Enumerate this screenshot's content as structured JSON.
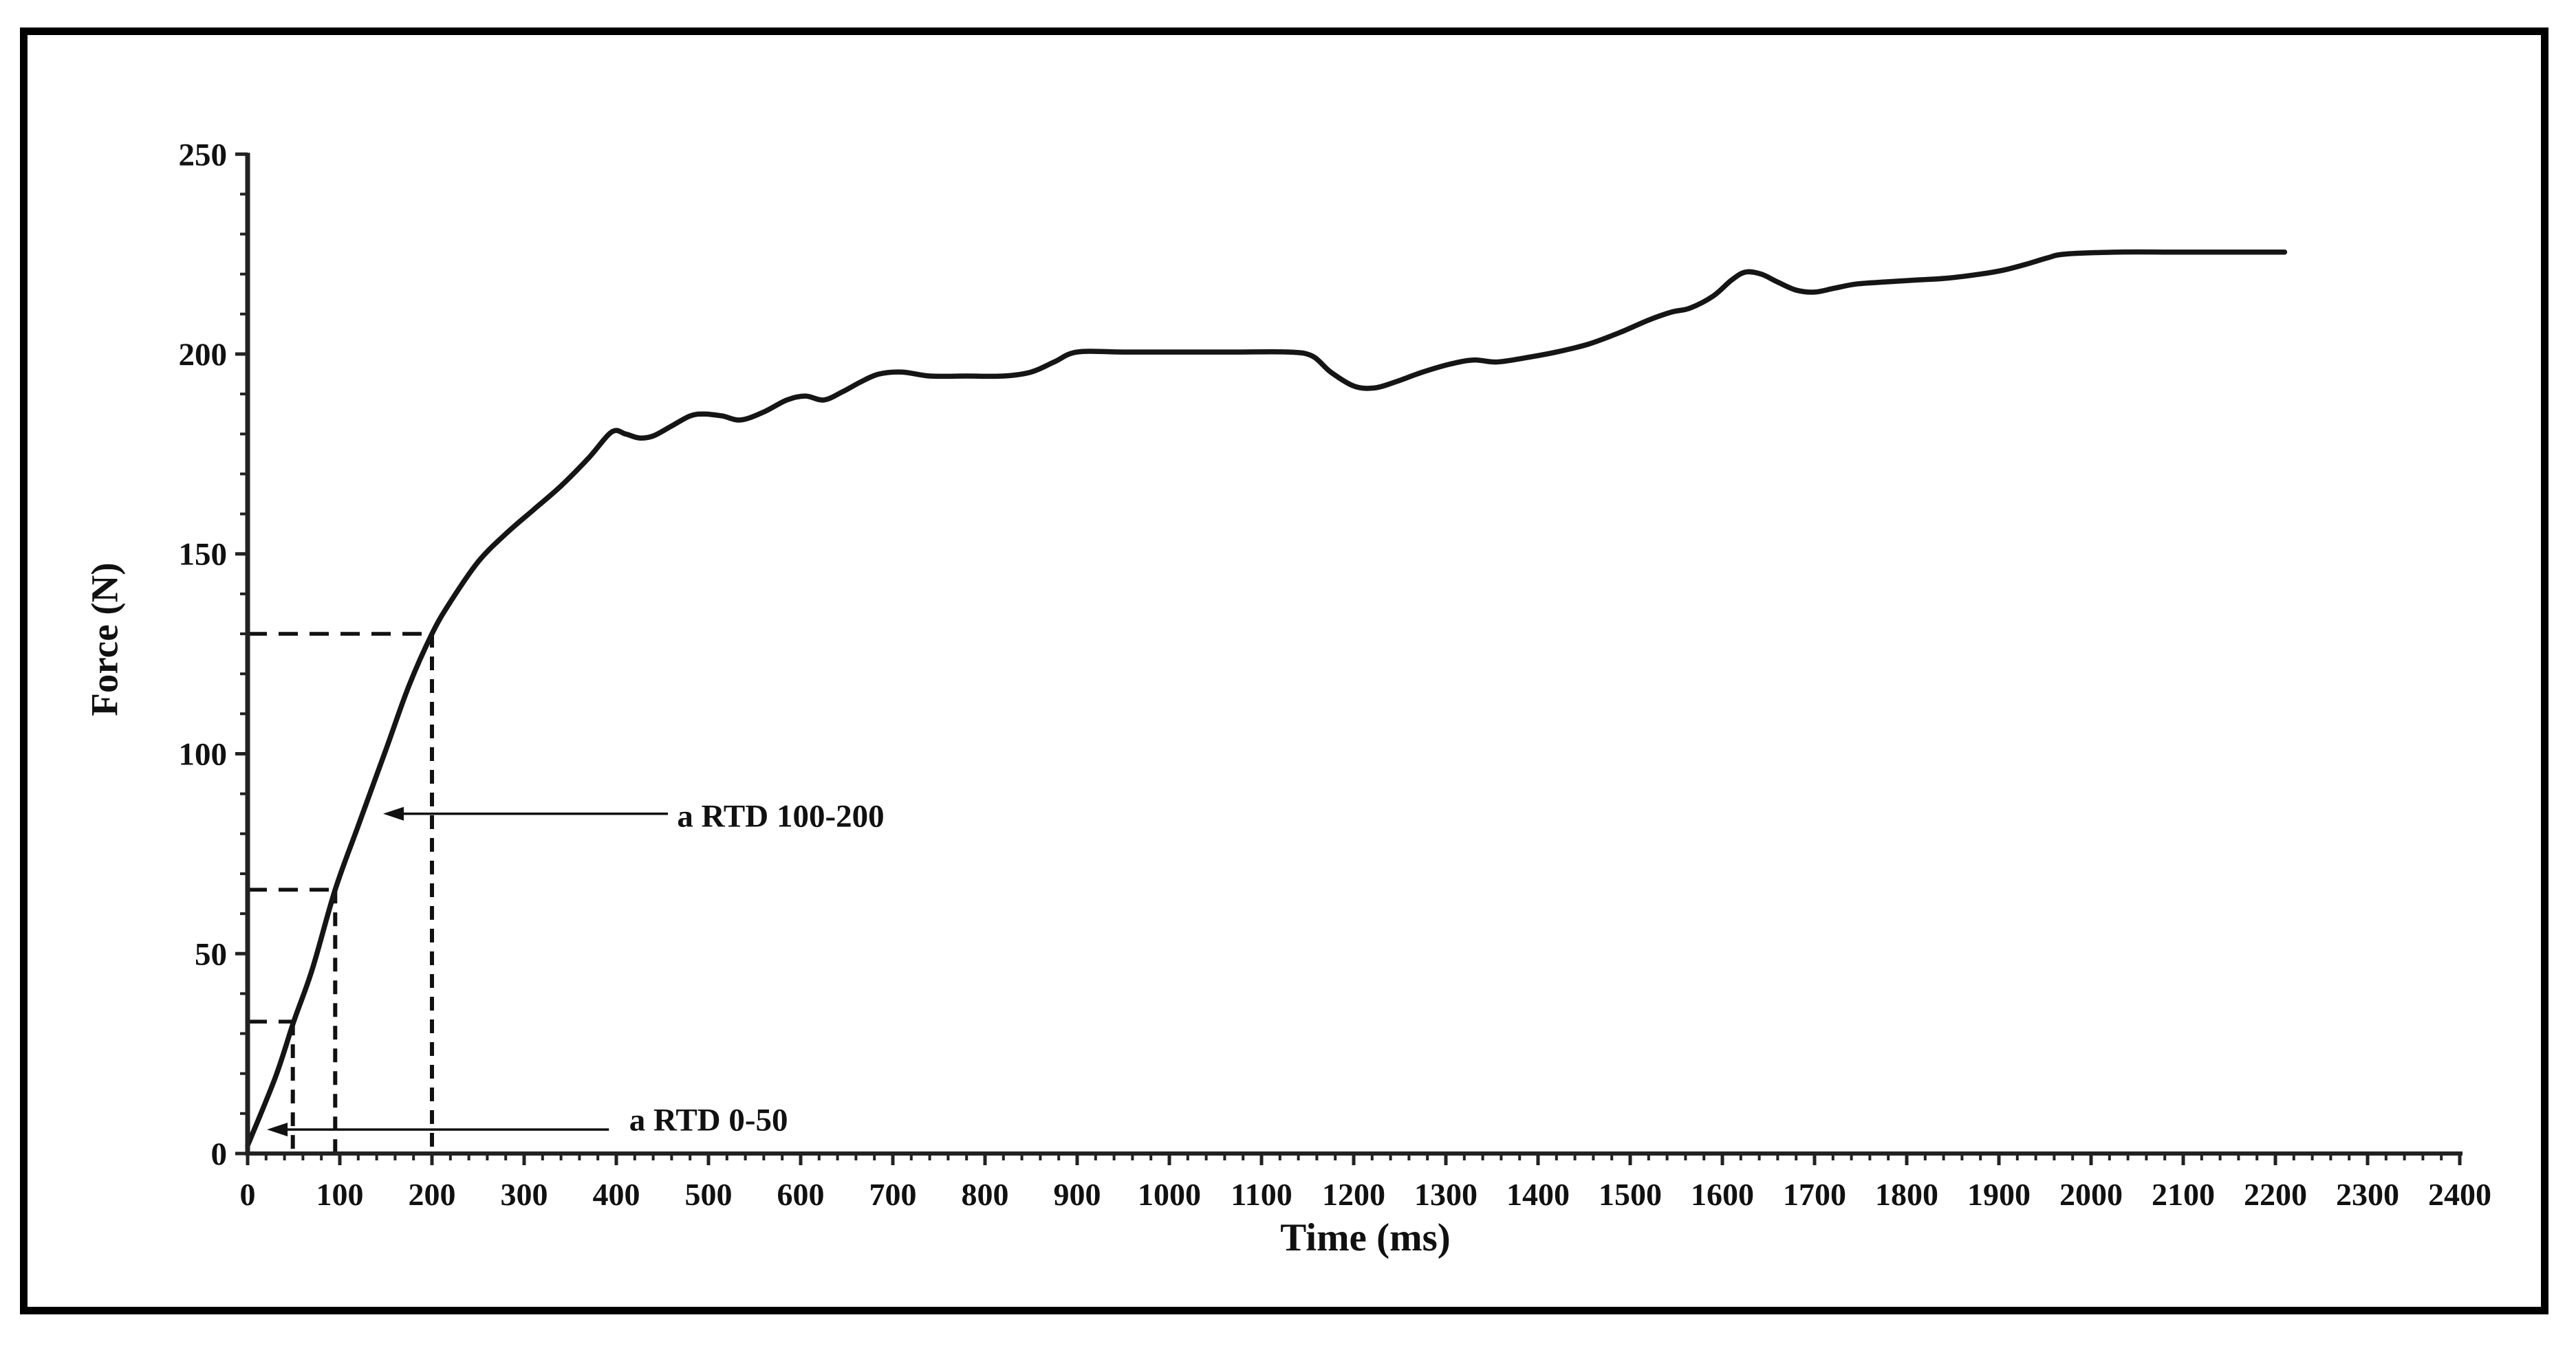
{
  "figure": {
    "background": "#ffffff",
    "border_color": "#000000",
    "ink_color": "#111111",
    "curve_color": "#151515"
  },
  "chart_data": {
    "type": "line",
    "title": "",
    "xlabel": "Time (ms)",
    "ylabel": "Force (N)",
    "xlim": [
      0,
      2400
    ],
    "ylim": [
      0,
      250
    ],
    "grid": "off",
    "legend": "none",
    "x_major_ticks": [
      0,
      100,
      200,
      300,
      400,
      500,
      600,
      700,
      800,
      900,
      1000,
      1100,
      1200,
      1300,
      1400,
      1500,
      1600,
      1700,
      1800,
      1900,
      2000,
      2100,
      2200,
      2300,
      2400
    ],
    "x_minor_step": 20,
    "y_major_ticks": [
      0,
      50,
      100,
      150,
      200,
      250
    ],
    "y_minor_step": 10,
    "series": [
      {
        "name": "force-time curve",
        "points": [
          [
            0,
            2
          ],
          [
            30,
            19
          ],
          [
            50,
            33
          ],
          [
            70,
            46
          ],
          [
            95,
            66
          ],
          [
            120,
            82
          ],
          [
            150,
            101
          ],
          [
            175,
            117
          ],
          [
            200,
            130
          ],
          [
            220,
            138
          ],
          [
            250,
            148
          ],
          [
            280,
            155
          ],
          [
            310,
            161
          ],
          [
            340,
            167
          ],
          [
            370,
            174
          ],
          [
            395,
            180.5
          ],
          [
            410,
            180
          ],
          [
            425,
            179
          ],
          [
            440,
            179.5
          ],
          [
            460,
            182
          ],
          [
            480,
            184.5
          ],
          [
            495,
            185
          ],
          [
            515,
            184.5
          ],
          [
            535,
            183.5
          ],
          [
            560,
            185.5
          ],
          [
            585,
            188.5
          ],
          [
            605,
            189.5
          ],
          [
            625,
            188.5
          ],
          [
            645,
            190.5
          ],
          [
            665,
            193
          ],
          [
            685,
            195
          ],
          [
            710,
            195.5
          ],
          [
            740,
            194.5
          ],
          [
            780,
            194.5
          ],
          [
            820,
            194.5
          ],
          [
            850,
            195.5
          ],
          [
            875,
            198
          ],
          [
            900,
            200.5
          ],
          [
            950,
            200.5
          ],
          [
            1010,
            200.5
          ],
          [
            1070,
            200.5
          ],
          [
            1130,
            200.5
          ],
          [
            1155,
            199.5
          ],
          [
            1175,
            195.5
          ],
          [
            1200,
            192
          ],
          [
            1222,
            191.5
          ],
          [
            1245,
            193
          ],
          [
            1275,
            195.5
          ],
          [
            1305,
            197.5
          ],
          [
            1330,
            198.5
          ],
          [
            1355,
            198
          ],
          [
            1385,
            199
          ],
          [
            1420,
            200.5
          ],
          [
            1455,
            202.5
          ],
          [
            1490,
            205.5
          ],
          [
            1520,
            208.5
          ],
          [
            1545,
            210.5
          ],
          [
            1565,
            211.5
          ],
          [
            1590,
            214.5
          ],
          [
            1610,
            218.5
          ],
          [
            1625,
            220.5
          ],
          [
            1642,
            220
          ],
          [
            1660,
            218
          ],
          [
            1680,
            216
          ],
          [
            1700,
            215.5
          ],
          [
            1722,
            216.5
          ],
          [
            1745,
            217.5
          ],
          [
            1775,
            218
          ],
          [
            1810,
            218.5
          ],
          [
            1845,
            219
          ],
          [
            1880,
            220
          ],
          [
            1905,
            221
          ],
          [
            1930,
            222.5
          ],
          [
            1952,
            224
          ],
          [
            1972,
            225
          ],
          [
            2030,
            225.5
          ],
          [
            2090,
            225.5
          ],
          [
            2150,
            225.5
          ],
          [
            2210,
            225.5
          ]
        ]
      }
    ],
    "guides": [
      {
        "t": 49,
        "F": 33
      },
      {
        "t": 95,
        "F": 66
      },
      {
        "t": 200,
        "F": 130
      }
    ],
    "annotations": [
      {
        "label": "a RTD 0-50",
        "arrow_from_t": 392,
        "arrow_to_t": 21,
        "F": 6,
        "text_t": 414,
        "text_F": 8.5
      },
      {
        "label": "a RTD 100-200",
        "arrow_from_t": 456,
        "arrow_to_t": 147,
        "F": 85,
        "text_t": 466,
        "text_F": 84.5
      }
    ]
  }
}
